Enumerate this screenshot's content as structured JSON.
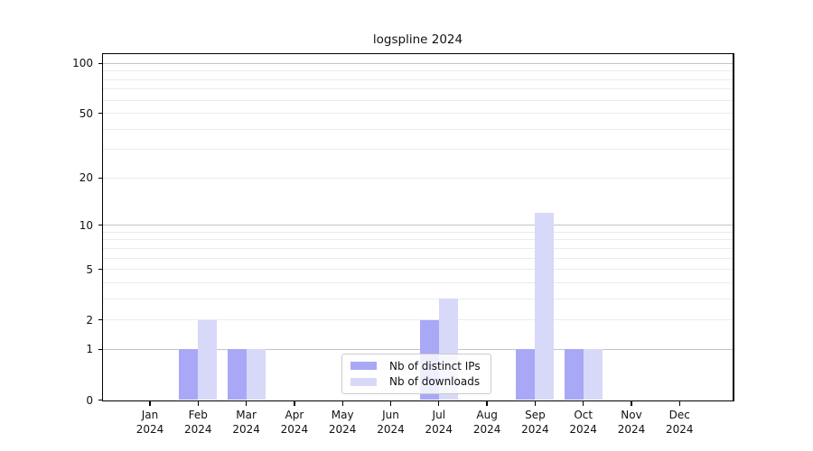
{
  "title": "logspline 2024",
  "chart_data": {
    "type": "bar",
    "title": "logspline 2024",
    "categories": [
      "Jan",
      "Feb",
      "Mar",
      "Apr",
      "May",
      "Jun",
      "Jul",
      "Aug",
      "Sep",
      "Oct",
      "Nov",
      "Dec"
    ],
    "category_year": "2024",
    "series": [
      {
        "name": "Nb of distinct IPs",
        "color": "#a8a8f7",
        "values": [
          0,
          1,
          1,
          0,
          0,
          0,
          2,
          0,
          1,
          1,
          0,
          0
        ]
      },
      {
        "name": "Nb of downloads",
        "color": "#d8d8f9",
        "values": [
          0,
          2,
          1,
          0,
          0,
          0,
          3,
          0,
          12,
          1,
          0,
          0
        ]
      }
    ],
    "xlabel": "",
    "ylabel": "",
    "y_scale": "log1p",
    "ylim": [
      0,
      113
    ],
    "y_tick_values": [
      0,
      1,
      2,
      5,
      10,
      20,
      50,
      100
    ],
    "y_tick_labels": [
      "0",
      "1",
      "2",
      "5",
      "10",
      "20",
      "50",
      "100"
    ],
    "y_major_gridlines": [
      1,
      10,
      100
    ],
    "y_minor_gridlines": [
      2,
      3,
      4,
      5,
      6,
      7,
      8,
      9,
      20,
      30,
      40,
      50,
      60,
      70,
      80,
      90
    ],
    "grid": "on",
    "legend_position": "bottom-center-inside",
    "colors": {
      "distinct_ips_bar": "#a8a8f7",
      "downloads_bar": "#d8d8f9",
      "major_grid": "#c3c3c3",
      "minor_grid": "#ebebeb",
      "spine": "#000000",
      "background": "#ffffff"
    }
  },
  "legend": {
    "items": [
      {
        "label": "Nb of distinct IPs"
      },
      {
        "label": "Nb of downloads"
      }
    ]
  }
}
